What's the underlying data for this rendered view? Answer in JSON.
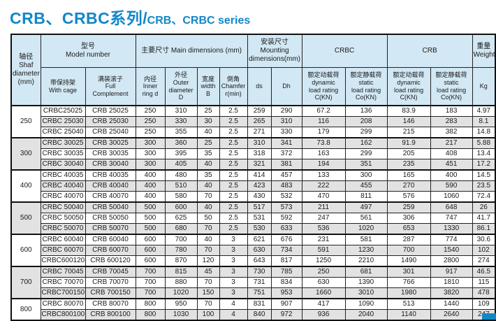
{
  "title": {
    "zh": "CRB、CRBC系列",
    "sep": "/",
    "en": "CRB、CRBC series"
  },
  "colors": {
    "accent": "#1287c8",
    "header_bg": "#d2e8f4",
    "row_alt_bg": "#e2e2e2",
    "border": "#222222"
  },
  "header": {
    "shaft": "轴径\nShaf\ndiameter\n(mm)",
    "model": "型号\nModel number",
    "main_dims": "主要尺寸 Main dimensions (mm)",
    "mounting": "安装尺寸\nMounting\ndimensions(mm)",
    "crbc": "CRBC",
    "crb": "CRB",
    "weight": "重量\nWeight",
    "sub": {
      "with_cage": "带保持架\nWith cage",
      "full_complement": "满装滚子\nFull\nComplement",
      "inner": "内径\nInner\nring d",
      "outer": "外径\nOuter\ndiameter\nD",
      "width": "宽度\nwidth B",
      "chamfer": "倒角\nChamfer\nr(min)",
      "ds": "ds",
      "dh": "Dh",
      "dynamic": "额定动载荷\ndynamic\nload rating\nC(KN)",
      "static": "额定静载荷\nstatic\nload rating\nCo(KN)",
      "kg": "Kg"
    }
  },
  "columns": [
    "model-with-cage",
    "model-full-complement",
    "inner-ring-d",
    "outer-diameter-D",
    "width-B",
    "chamfer-r-min",
    "mounting-ds",
    "mounting-Dh",
    "crbc-dynamic-load-C",
    "crbc-static-load-Co",
    "crb-dynamic-load-C",
    "crb-static-load-Co",
    "weight-kg"
  ],
  "groups": [
    {
      "shaft": "250",
      "rows": [
        [
          "CRBC25025",
          "CRB 25025",
          "250",
          "310",
          "25",
          "2.5",
          "259",
          "290",
          "67.2",
          "136",
          "83.9",
          "183",
          "4.97"
        ],
        [
          "CRBC 25030",
          "CRB 25030",
          "250",
          "330",
          "30",
          "2.5",
          "265",
          "310",
          "116",
          "208",
          "146",
          "283",
          "8.1"
        ],
        [
          "CRBC 25040",
          "CRB 25040",
          "250",
          "355",
          "40",
          "2.5",
          "271",
          "330",
          "179",
          "299",
          "215",
          "382",
          "14.8"
        ]
      ]
    },
    {
      "shaft": "300",
      "rows": [
        [
          "CRBC 30025",
          "CRB 30025",
          "300",
          "360",
          "25",
          "2.5",
          "310",
          "341",
          "73.8",
          "162",
          "91.9",
          "217",
          "5.88"
        ],
        [
          "CRBC 30035",
          "CRB 30035",
          "300",
          "395",
          "35",
          "2.5",
          "318",
          "372",
          "163",
          "299",
          "205",
          "408",
          "13.4"
        ],
        [
          "CRBC 30040",
          "CRB 30040",
          "300",
          "405",
          "40",
          "2.5",
          "321",
          "381",
          "194",
          "351",
          "235",
          "451",
          "17.2"
        ]
      ]
    },
    {
      "shaft": "400",
      "rows": [
        [
          "CRBC 40035",
          "CRB 40035",
          "400",
          "480",
          "35",
          "2.5",
          "414",
          "457",
          "133",
          "300",
          "165",
          "400",
          "14.5"
        ],
        [
          "CRBC 40040",
          "CRB 40040",
          "400",
          "510",
          "40",
          "2.5",
          "423",
          "483",
          "222",
          "455",
          "270",
          "590",
          "23.5"
        ],
        [
          "CRBC 40070",
          "CRB 40070",
          "400",
          "580",
          "70",
          "2.5",
          "430",
          "532",
          "470",
          "811",
          "576",
          "1060",
          "72.4"
        ]
      ]
    },
    {
      "shaft": "500",
      "rows": [
        [
          "CRBC 50040",
          "CRB 50040",
          "500",
          "600",
          "40",
          "2.5",
          "517",
          "573",
          "211",
          "497",
          "259",
          "648",
          "26"
        ],
        [
          "CRBC 50050",
          "CRB 50050",
          "500",
          "625",
          "50",
          "2.5",
          "531",
          "592",
          "247",
          "561",
          "306",
          "747",
          "41.7"
        ],
        [
          "CRBC 50070",
          "CRB 50070",
          "500",
          "680",
          "70",
          "2.5",
          "530",
          "633",
          "536",
          "1020",
          "653",
          "1330",
          "86.1"
        ]
      ]
    },
    {
      "shaft": "600",
      "rows": [
        [
          "CRBC 60040",
          "CRB 60040",
          "600",
          "700",
          "40",
          "3",
          "621",
          "676",
          "231",
          "581",
          "287",
          "774",
          "30.6"
        ],
        [
          "CRBC 60070",
          "CRB 60070",
          "600",
          "780",
          "70",
          "3",
          "630",
          "734",
          "591",
          "1230",
          "700",
          "1540",
          "102"
        ],
        [
          "CRBC600120",
          "CRB 600120",
          "600",
          "870",
          "120",
          "3",
          "643",
          "817",
          "1250",
          "2210",
          "1490",
          "2800",
          "274"
        ]
      ]
    },
    {
      "shaft": "700",
      "rows": [
        [
          "CRBC 70045",
          "CRB 70045",
          "700",
          "815",
          "45",
          "3",
          "730",
          "785",
          "250",
          "681",
          "301",
          "917",
          "46.5"
        ],
        [
          "CRBC 70070",
          "CRB 70070",
          "700",
          "880",
          "70",
          "3",
          "731",
          "834",
          "630",
          "1390",
          "766",
          "1810",
          "115"
        ],
        [
          "CRBC700150",
          "CRB 700150",
          "700",
          "1020",
          "150",
          "3",
          "751",
          "953",
          "1660",
          "3010",
          "1980",
          "3820",
          "478"
        ]
      ]
    },
    {
      "shaft": "800",
      "rows": [
        [
          "CRBC 80070",
          "CRB 80070",
          "800",
          "950",
          "70",
          "4",
          "831",
          "907",
          "417",
          "1090",
          "513",
          "1440",
          "109"
        ],
        [
          "CRBC800100",
          "CRB 800100",
          "800",
          "1030",
          "100",
          "4",
          "840",
          "972",
          "936",
          "2040",
          "1140",
          "2640",
          "247"
        ]
      ]
    }
  ]
}
